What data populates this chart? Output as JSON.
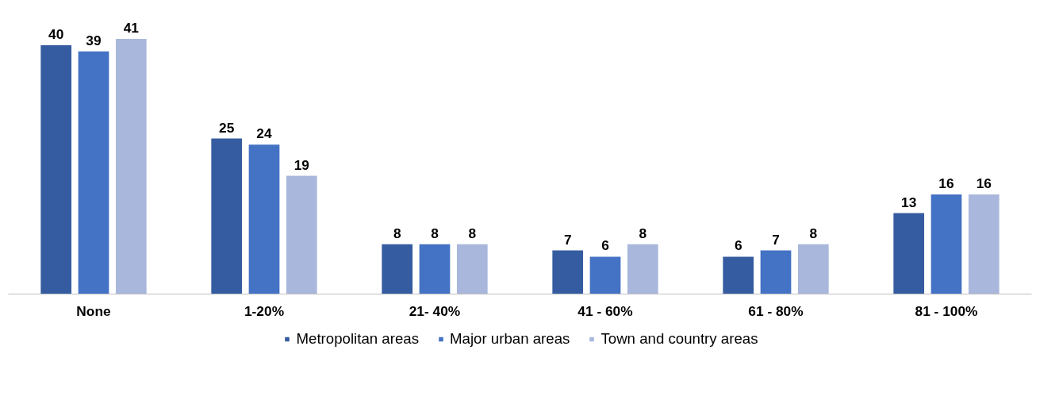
{
  "chart_data": {
    "type": "bar",
    "categories": [
      "None",
      "1-20%",
      "21- 40%",
      "41 - 60%",
      "61 - 80%",
      "81 - 100%"
    ],
    "series": [
      {
        "name": "Metropolitan areas",
        "color": "#355ca0",
        "values": [
          40,
          25,
          8,
          7,
          6,
          13
        ]
      },
      {
        "name": "Major urban areas",
        "color": "#4472c4",
        "values": [
          39,
          24,
          8,
          6,
          7,
          16
        ]
      },
      {
        "name": "Town and country areas",
        "color": "#a9b7dc",
        "values": [
          41,
          19,
          8,
          8,
          8,
          16
        ]
      }
    ],
    "data_labels": true,
    "legend": "bottom"
  }
}
